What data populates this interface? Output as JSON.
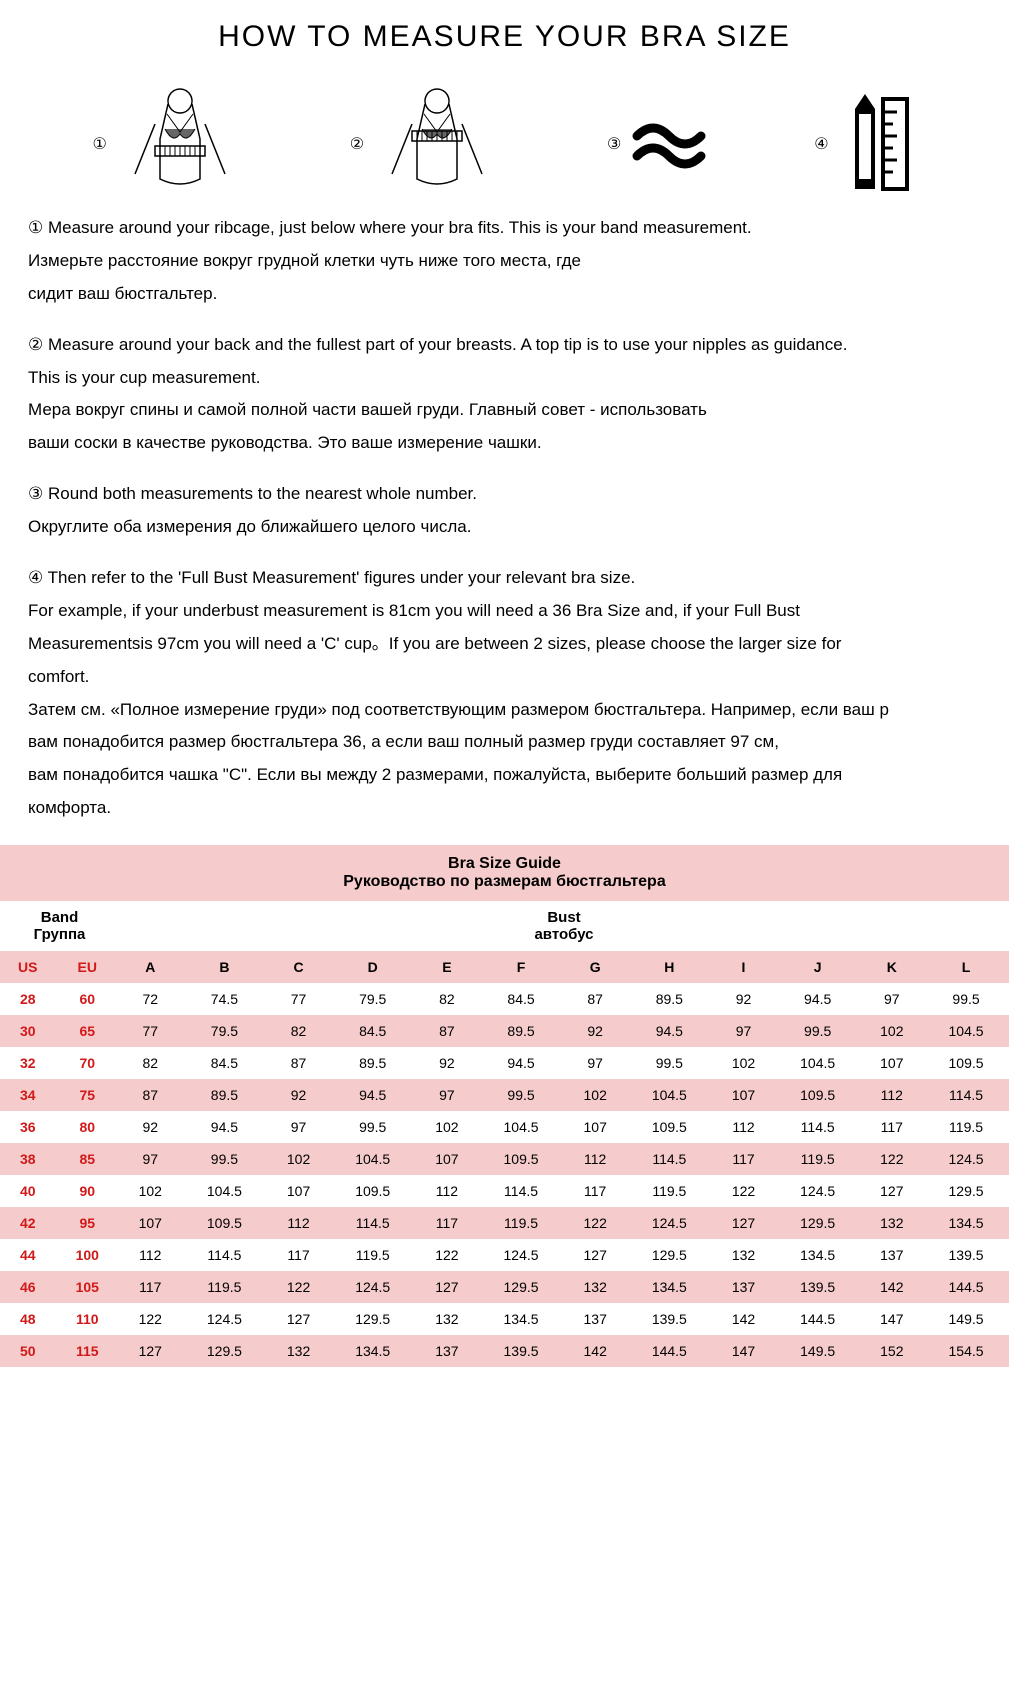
{
  "title": "HOW TO MEASURE YOUR BRA SIZE",
  "colors": {
    "pink": "#f6cbcb",
    "red": "#d11919",
    "text": "#000000",
    "bg": "#ffffff"
  },
  "steps": {
    "s1": {
      "num": "①"
    },
    "s2": {
      "num": "②"
    },
    "s3": {
      "num": "③"
    },
    "s4": {
      "num": "④"
    }
  },
  "instr": {
    "b1": {
      "en": "① Measure around your ribcage, just below where your bra fits. This is your band measurement.",
      "ru1": "Измерьте расстояние вокруг грудной клетки чуть ниже того места, где",
      "ru2": "сидит ваш бюстгальтер."
    },
    "b2": {
      "en1": "② Measure around your back and the fullest part of your breasts. A top tip is to use your nipples as guidance.",
      "en2": "This is your cup measurement.",
      "ru1": "Мера вокруг спины и самой полной части вашей груди. Главный совет - использовать",
      "ru2": "ваши соски в качестве руководства. Это ваше измерение чашки."
    },
    "b3": {
      "en": "③ Round both measurements to the nearest whole number.",
      "ru": "Округлите оба измерения до ближайшего целого числа."
    },
    "b4": {
      "en1": "④ Then refer to the 'Full Bust Measurement' figures under your relevant bra size.",
      "en2": "For example, if your underbust measurement is 81cm you will need a 36 Bra Size and, if your Full Bust",
      "en3": "Measurementsis 97cm you will need a 'C' cup。If you are between 2 sizes, please choose the larger size for",
      "en4": "comfort.",
      "ru1": "Затем см. «Полное измерение груди» под соответствующим размером бюстгальтера. Например, если ваш р",
      "ru2": "вам понадобится размер бюстгальтера 36, а если ваш полный размер груди составляет 97 см,",
      "ru3": "вам понадобится чашка \"C\". Если вы между 2 размерами, пожалуйста, выберите больший размер для",
      "ru4": "комфорта."
    }
  },
  "table": {
    "title_en": "Bra Size Guide",
    "title_ru": "Руководство по размерам бюстгальтера",
    "band_en": "Band",
    "band_ru": "Группа",
    "bust_en": "Bust",
    "bust_ru": "автобус",
    "cols_band": [
      "US",
      "EU"
    ],
    "cols_bust": [
      "A",
      "B",
      "C",
      "D",
      "E",
      "F",
      "G",
      "H",
      "I",
      "J",
      "K",
      "L"
    ],
    "rows": [
      {
        "us": "28",
        "eu": "60",
        "v": [
          "72",
          "74.5",
          "77",
          "79.5",
          "82",
          "84.5",
          "87",
          "89.5",
          "92",
          "94.5",
          "97",
          "99.5"
        ]
      },
      {
        "us": "30",
        "eu": "65",
        "v": [
          "77",
          "79.5",
          "82",
          "84.5",
          "87",
          "89.5",
          "92",
          "94.5",
          "97",
          "99.5",
          "102",
          "104.5"
        ]
      },
      {
        "us": "32",
        "eu": "70",
        "v": [
          "82",
          "84.5",
          "87",
          "89.5",
          "92",
          "94.5",
          "97",
          "99.5",
          "102",
          "104.5",
          "107",
          "109.5"
        ]
      },
      {
        "us": "34",
        "eu": "75",
        "v": [
          "87",
          "89.5",
          "92",
          "94.5",
          "97",
          "99.5",
          "102",
          "104.5",
          "107",
          "109.5",
          "112",
          "114.5"
        ]
      },
      {
        "us": "36",
        "eu": "80",
        "v": [
          "92",
          "94.5",
          "97",
          "99.5",
          "102",
          "104.5",
          "107",
          "109.5",
          "112",
          "114.5",
          "117",
          "119.5"
        ]
      },
      {
        "us": "38",
        "eu": "85",
        "v": [
          "97",
          "99.5",
          "102",
          "104.5",
          "107",
          "109.5",
          "112",
          "114.5",
          "117",
          "119.5",
          "122",
          "124.5"
        ]
      },
      {
        "us": "40",
        "eu": "90",
        "v": [
          "102",
          "104.5",
          "107",
          "109.5",
          "112",
          "114.5",
          "117",
          "119.5",
          "122",
          "124.5",
          "127",
          "129.5"
        ]
      },
      {
        "us": "42",
        "eu": "95",
        "v": [
          "107",
          "109.5",
          "112",
          "114.5",
          "117",
          "119.5",
          "122",
          "124.5",
          "127",
          "129.5",
          "132",
          "134.5"
        ]
      },
      {
        "us": "44",
        "eu": "100",
        "v": [
          "112",
          "114.5",
          "117",
          "119.5",
          "122",
          "124.5",
          "127",
          "129.5",
          "132",
          "134.5",
          "137",
          "139.5"
        ]
      },
      {
        "us": "46",
        "eu": "105",
        "v": [
          "117",
          "119.5",
          "122",
          "124.5",
          "127",
          "129.5",
          "132",
          "134.5",
          "137",
          "139.5",
          "142",
          "144.5"
        ]
      },
      {
        "us": "48",
        "eu": "110",
        "v": [
          "122",
          "124.5",
          "127",
          "129.5",
          "132",
          "134.5",
          "137",
          "139.5",
          "142",
          "144.5",
          "147",
          "149.5"
        ]
      },
      {
        "us": "50",
        "eu": "115",
        "v": [
          "127",
          "129.5",
          "132",
          "134.5",
          "137",
          "139.5",
          "142",
          "144.5",
          "147",
          "149.5",
          "152",
          "154.5"
        ]
      }
    ]
  }
}
